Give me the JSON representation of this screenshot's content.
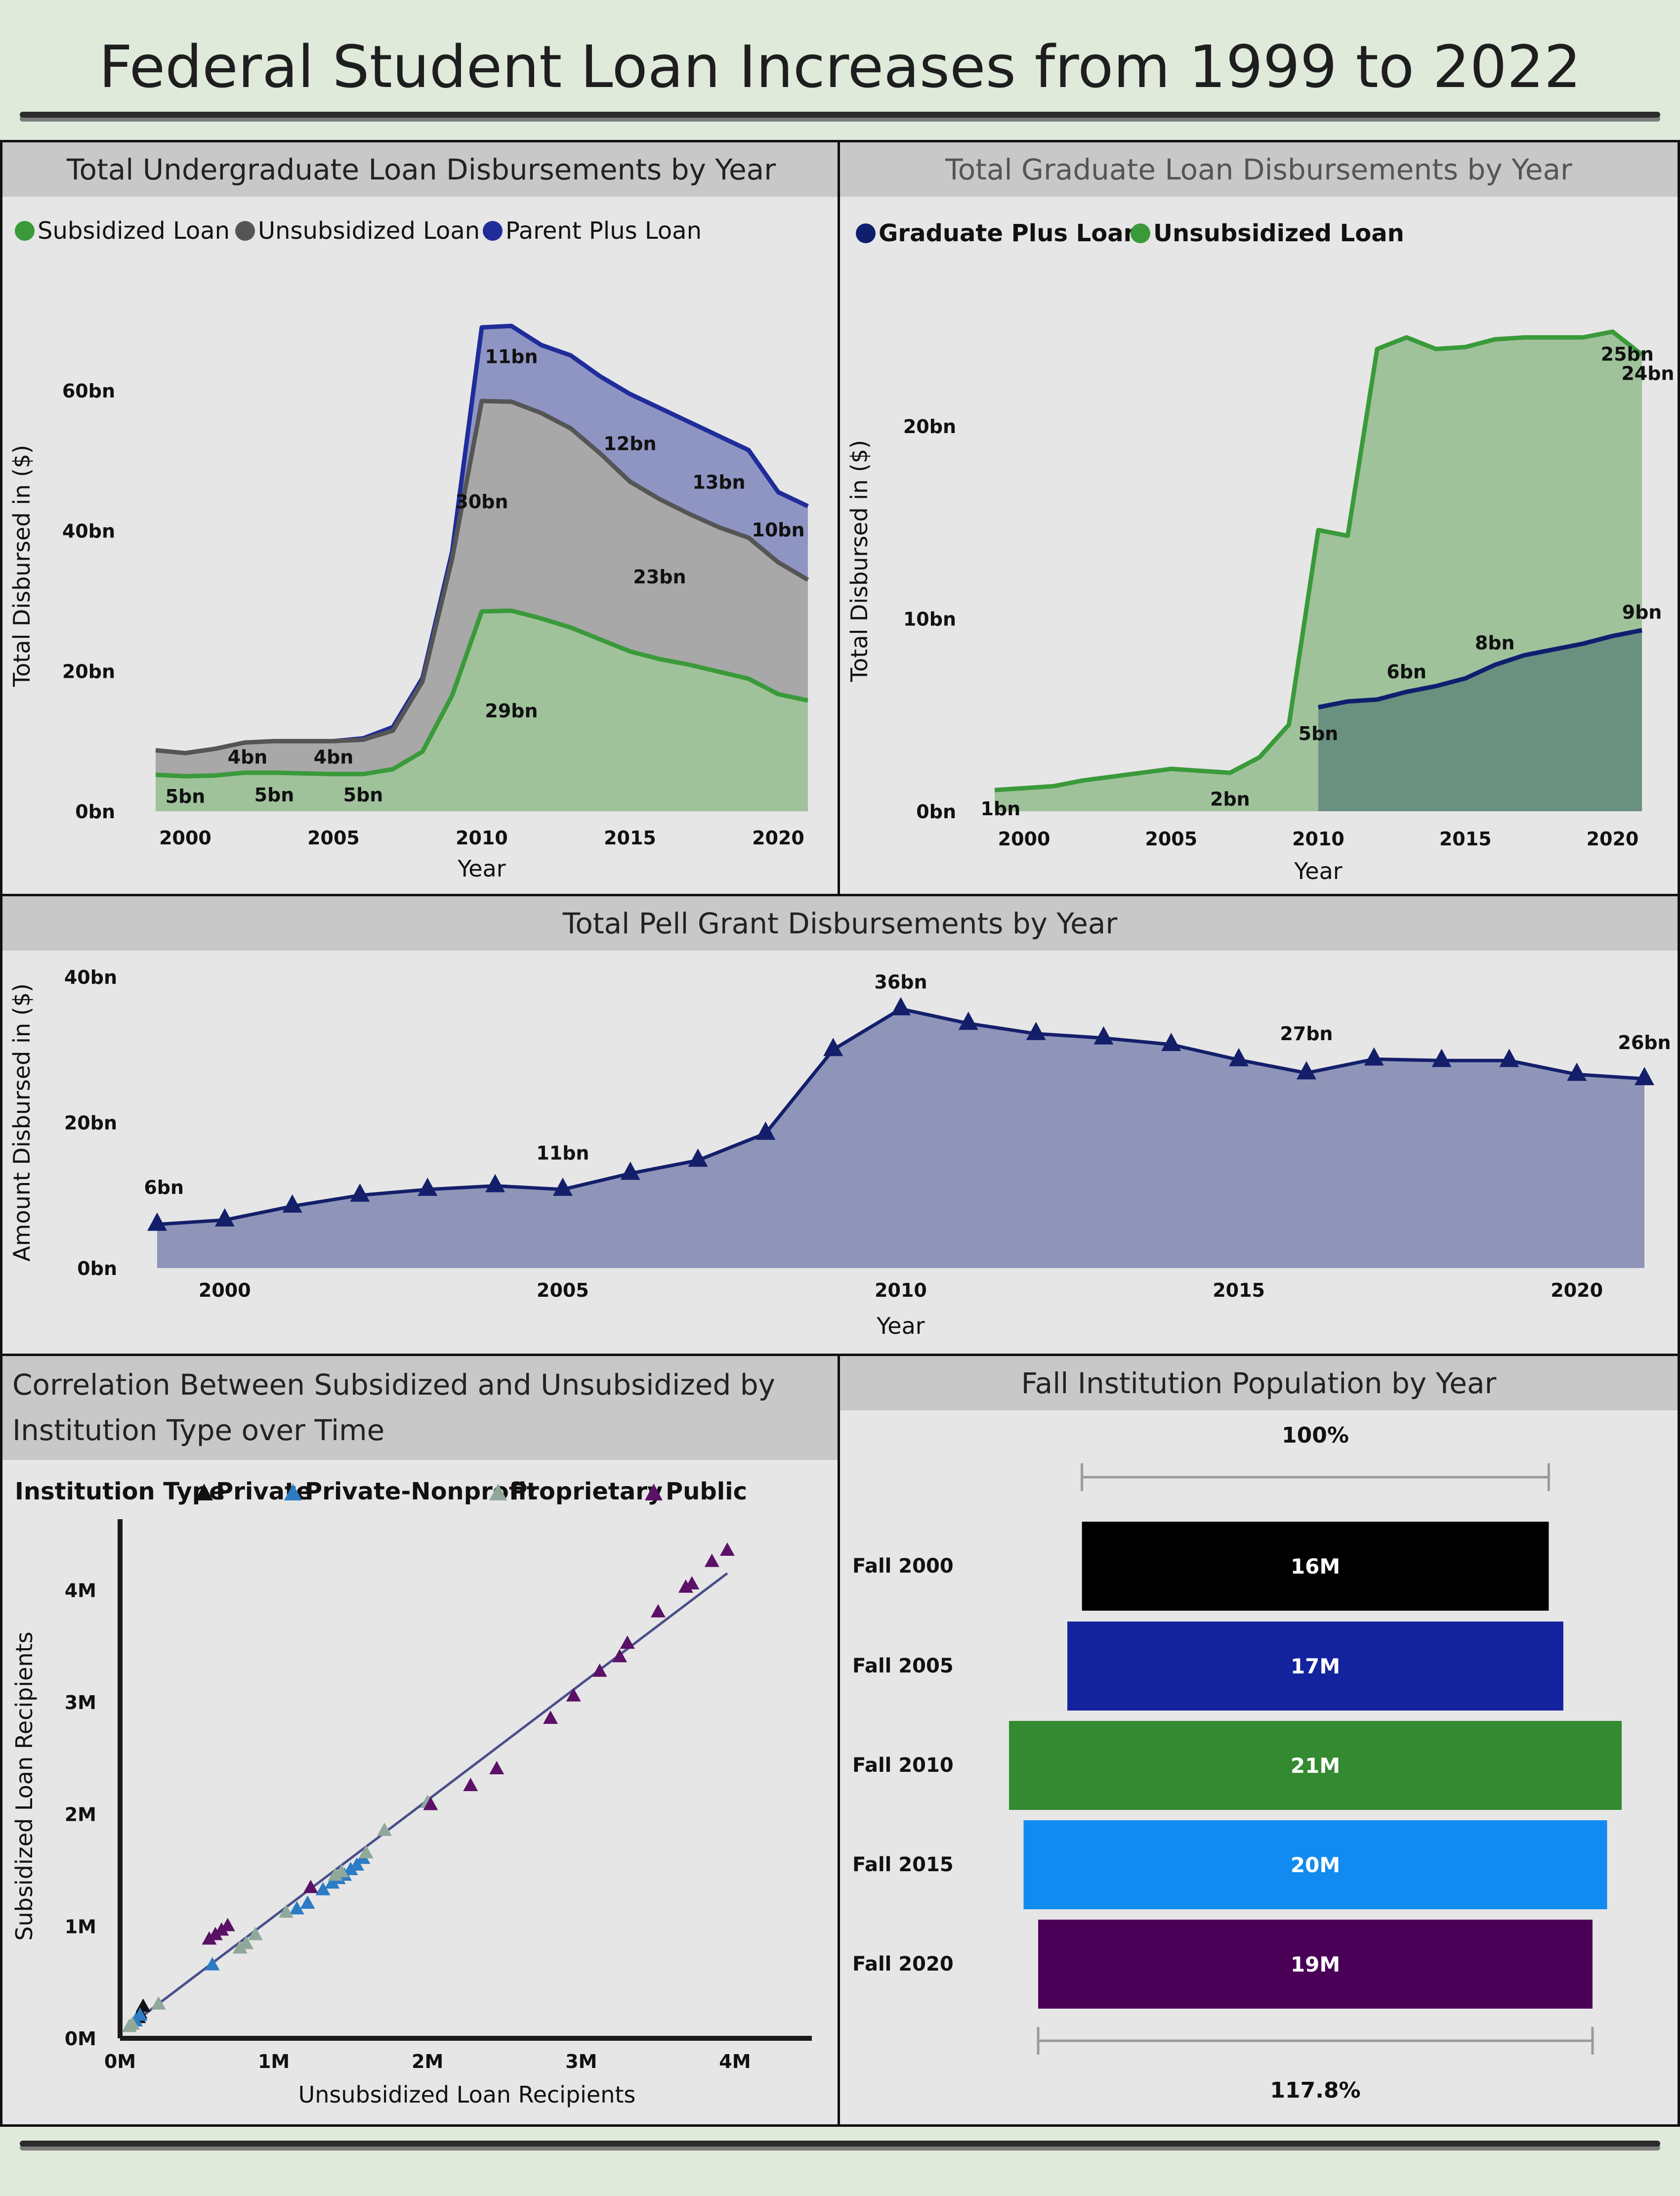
{
  "title": "Federal Student Loan Increases from 1999 to 2022",
  "colors": {
    "subsidized": "#3a9a3a",
    "subsidized_fill": "#9fc29b",
    "unsubsidized": "#555555",
    "unsubsidized_fill": "#a8a8a8",
    "parent_plus": "#1f2c9a",
    "parent_plus_fill": "#8f95c3",
    "grad_plus": "#0f1f6e",
    "grad_plus_fill": "#6a9180",
    "pell": "#141f6b",
    "pell_fill": "#8f95b9"
  },
  "chart_data": [
    {
      "id": "undergrad",
      "type": "area",
      "title": "Total Undergraduate Loan Disbursements by Year",
      "xlabel": "Year",
      "ylabel": "Total Disbursed in ($)",
      "ylim": [
        0,
        70
      ],
      "y_ticks": [
        0,
        20,
        40,
        60
      ],
      "y_tick_labels": [
        "0bn",
        "20bn",
        "40bn",
        "60bn"
      ],
      "x_ticks": [
        2000,
        2005,
        2010,
        2015,
        2020
      ],
      "legend": [
        "Subsidized Loan",
        "Unsubsidized Loan",
        "Parent Plus Loan"
      ],
      "x": [
        1999,
        2000,
        2001,
        2002,
        2003,
        2004,
        2005,
        2006,
        2007,
        2008,
        2009,
        2010,
        2011,
        2012,
        2013,
        2014,
        2015,
        2016,
        2017,
        2018,
        2019,
        2020,
        2021
      ],
      "series": [
        {
          "name": "Subsidized Loan",
          "values": [
            5.2,
            5.0,
            5.1,
            5.5,
            5.5,
            5.4,
            5.3,
            5.3,
            6.0,
            8.5,
            16.5,
            28.5,
            28.6,
            27.5,
            26.2,
            24.5,
            22.8,
            21.7,
            20.9,
            19.9,
            18.9,
            16.7,
            15.8
          ]
        },
        {
          "name": "Unsubsidized Loan",
          "values": [
            8.7,
            8.3,
            8.9,
            9.8,
            10.0,
            10.0,
            10.0,
            10.2,
            11.5,
            18.5,
            36.0,
            58.5,
            58.4,
            56.8,
            54.6,
            51.0,
            47.0,
            44.5,
            42.4,
            40.5,
            39.0,
            35.5,
            33.0
          ]
        },
        {
          "name": "Parent Plus Loan",
          "values": [
            null,
            null,
            null,
            null,
            null,
            null,
            10.0,
            10.4,
            12.0,
            19.0,
            37.0,
            69.0,
            69.2,
            66.5,
            65.0,
            62.0,
            59.5,
            57.5,
            55.5,
            53.5,
            51.5,
            45.5,
            43.5
          ]
        }
      ],
      "annotations": [
        {
          "x": 2000,
          "y": 1.2,
          "text": "5bn"
        },
        {
          "x": 2002.1,
          "y": 6.8,
          "text": "4bn"
        },
        {
          "x": 2003,
          "y": 1.4,
          "text": "5bn"
        },
        {
          "x": 2005,
          "y": 6.8,
          "text": "4bn"
        },
        {
          "x": 2006,
          "y": 1.4,
          "text": "5bn"
        },
        {
          "x": 2011,
          "y": 13.4,
          "text": "29bn"
        },
        {
          "x": 2010,
          "y": 43.2,
          "text": "30bn"
        },
        {
          "x": 2011,
          "y": 63.9,
          "text": "11bn"
        },
        {
          "x": 2016,
          "y": 32.5,
          "text": "23bn"
        },
        {
          "x": 2015,
          "y": 51.5,
          "text": "12bn"
        },
        {
          "x": 2018,
          "y": 46.0,
          "text": "13bn"
        },
        {
          "x": 2020,
          "y": 39.2,
          "text": "10bn"
        }
      ]
    },
    {
      "id": "graduate",
      "type": "area",
      "title": "Total Graduate Loan Disbursements by Year",
      "xlabel": "Year",
      "ylabel": "Total Disbursed in ($)",
      "ylim": [
        0,
        26
      ],
      "y_ticks": [
        0,
        10,
        20
      ],
      "y_tick_labels": [
        "0bn",
        "10bn",
        "20bn"
      ],
      "x_ticks": [
        2000,
        2005,
        2010,
        2015,
        2020
      ],
      "legend": [
        "Graduate Plus Loan",
        "Unsubsidized Loan"
      ],
      "x": [
        1999,
        2000,
        2001,
        2002,
        2003,
        2004,
        2005,
        2006,
        2007,
        2008,
        2009,
        2010,
        2011,
        2012,
        2013,
        2014,
        2015,
        2016,
        2017,
        2018,
        2019,
        2020,
        2021
      ],
      "series": [
        {
          "name": "Graduate Plus Loan",
          "values": [
            null,
            null,
            null,
            null,
            null,
            null,
            null,
            null,
            null,
            null,
            null,
            5.4,
            5.7,
            5.8,
            6.2,
            6.5,
            6.9,
            7.6,
            8.1,
            8.4,
            8.7,
            9.1,
            9.4
          ]
        },
        {
          "name": "Unsubsidized Loan",
          "values": [
            1.1,
            1.2,
            1.3,
            1.6,
            1.8,
            2.0,
            2.2,
            2.1,
            2.0,
            2.8,
            4.5,
            14.6,
            14.3,
            24.0,
            24.6,
            24.0,
            24.1,
            24.5,
            24.6,
            24.6,
            24.6,
            24.9,
            23.7
          ]
        }
      ],
      "annotations": [
        {
          "x": 1999.2,
          "y": -0.2,
          "text": "1bn"
        },
        {
          "x": 2007,
          "y": 0.3,
          "text": "2bn"
        },
        {
          "x": 2010,
          "y": 3.7,
          "text": "5bn"
        },
        {
          "x": 2013,
          "y": 6.9,
          "text": "6bn"
        },
        {
          "x": 2016,
          "y": 8.4,
          "text": "8bn"
        },
        {
          "x": 2021,
          "y": 10.0,
          "text": "9bn"
        },
        {
          "x": 2020.5,
          "y": 23.4,
          "text": "25bn"
        },
        {
          "x": 2021.2,
          "y": 22.4,
          "text": "24bn"
        }
      ]
    },
    {
      "id": "pell",
      "type": "area",
      "title": "Total Pell Grant Disbursements by Year",
      "xlabel": "Year",
      "ylabel": "Amount Disbursed in ($)",
      "ylim": [
        0,
        40
      ],
      "y_ticks": [
        0,
        20,
        40
      ],
      "y_tick_labels": [
        "0bn",
        "20bn",
        "40bn"
      ],
      "x_ticks": [
        2000,
        2005,
        2010,
        2015,
        2020
      ],
      "x": [
        1999,
        2000,
        2001,
        2002,
        2003,
        2004,
        2005,
        2006,
        2007,
        2008,
        2009,
        2010,
        2011,
        2012,
        2013,
        2014,
        2015,
        2016,
        2017,
        2018,
        2019,
        2020,
        2021
      ],
      "series": [
        {
          "name": "",
          "values": [
            6.0,
            6.6,
            8.5,
            10.0,
            10.8,
            11.3,
            10.8,
            13.0,
            14.8,
            18.5,
            30.0,
            35.6,
            33.6,
            32.2,
            31.6,
            30.7,
            28.6,
            26.8,
            28.7,
            28.5,
            28.5,
            26.6,
            26.0
          ]
        }
      ],
      "annotations": [
        {
          "x": 1999.1,
          "y": 10.2,
          "text": "6bn"
        },
        {
          "x": 2005,
          "y": 14.9,
          "text": "11bn"
        },
        {
          "x": 2010,
          "y": 38.4,
          "text": "36bn"
        },
        {
          "x": 2016,
          "y": 31.3,
          "text": "27bn"
        },
        {
          "x": 2021,
          "y": 30.1,
          "text": "26bn"
        }
      ]
    },
    {
      "id": "scatter",
      "type": "scatter",
      "title": "Correlation Between Subsidized and Unsubsidized by Institution Type over Time",
      "title_lines": [
        "Correlation Between Subsidized and Unsubsidized by",
        "Institution Type over Time"
      ],
      "xlabel": "Unsubsidized Loan Recipients",
      "ylabel": "Subsidized Loan Recipients",
      "legend_title": "Institution Type",
      "xlim": [
        0,
        4.5
      ],
      "ylim": [
        0,
        4.5
      ],
      "x_ticks": [
        0,
        1,
        2,
        3,
        4
      ],
      "x_tick_labels": [
        "0M",
        "1M",
        "2M",
        "3M",
        "4M"
      ],
      "y_ticks": [
        0,
        1,
        2,
        3,
        4
      ],
      "y_tick_labels": [
        "0M",
        "1M",
        "2M",
        "3M",
        "4M"
      ],
      "trendline": {
        "x": [
          0.05,
          3.95
        ],
        "y": [
          0.1,
          4.15
        ]
      },
      "series": [
        {
          "name": "Private",
          "color": "#111111",
          "points": [
            [
              0.13,
              0.22
            ],
            [
              0.15,
              0.28
            ],
            [
              0.12,
              0.18
            ]
          ]
        },
        {
          "name": "Private-Nonprofit",
          "color": "#2b7cc4",
          "points": [
            [
              0.1,
              0.15
            ],
            [
              0.13,
              0.2
            ],
            [
              0.6,
              0.65
            ],
            [
              1.15,
              1.15
            ],
            [
              1.22,
              1.2
            ],
            [
              1.32,
              1.32
            ],
            [
              1.38,
              1.38
            ],
            [
              1.42,
              1.42
            ],
            [
              1.46,
              1.45
            ],
            [
              1.5,
              1.5
            ],
            [
              1.54,
              1.54
            ],
            [
              1.58,
              1.6
            ]
          ]
        },
        {
          "name": "Proprietary",
          "color": "#8fa89a",
          "points": [
            [
              0.06,
              0.1
            ],
            [
              0.08,
              0.12
            ],
            [
              0.25,
              0.3
            ],
            [
              0.78,
              0.8
            ],
            [
              0.82,
              0.84
            ],
            [
              0.88,
              0.92
            ],
            [
              1.08,
              1.12
            ],
            [
              1.4,
              1.45
            ],
            [
              1.44,
              1.48
            ],
            [
              1.6,
              1.65
            ],
            [
              1.72,
              1.85
            ],
            [
              2.0,
              2.1
            ]
          ]
        },
        {
          "name": "Public",
          "color": "#5a1166",
          "points": [
            [
              0.58,
              0.88
            ],
            [
              0.62,
              0.92
            ],
            [
              0.66,
              0.96
            ],
            [
              0.7,
              1.0
            ],
            [
              1.24,
              1.34
            ],
            [
              2.02,
              2.08
            ],
            [
              2.28,
              2.25
            ],
            [
              2.45,
              2.4
            ],
            [
              2.8,
              2.85
            ],
            [
              2.95,
              3.05
            ],
            [
              3.12,
              3.27
            ],
            [
              3.25,
              3.4
            ],
            [
              3.3,
              3.52
            ],
            [
              3.5,
              3.8
            ],
            [
              3.68,
              4.02
            ],
            [
              3.72,
              4.05
            ],
            [
              3.85,
              4.25
            ],
            [
              3.95,
              4.35
            ]
          ]
        }
      ]
    },
    {
      "id": "population",
      "type": "bar",
      "orientation": "horizontal",
      "title": "Fall Institution Population by Year",
      "categories": [
        "Fall 2000",
        "Fall 2005",
        "Fall 2010",
        "Fall 2015",
        "Fall 2020"
      ],
      "values": [
        16,
        17,
        21,
        20,
        19
      ],
      "value_labels": [
        "16M",
        "17M",
        "21M",
        "20M",
        "19M"
      ],
      "colors": [
        "#000000",
        "#13239e",
        "#348a30",
        "#118bf0",
        "#4a0057"
      ],
      "top_bracket": "100%",
      "bottom_bracket": "117.8%"
    }
  ]
}
